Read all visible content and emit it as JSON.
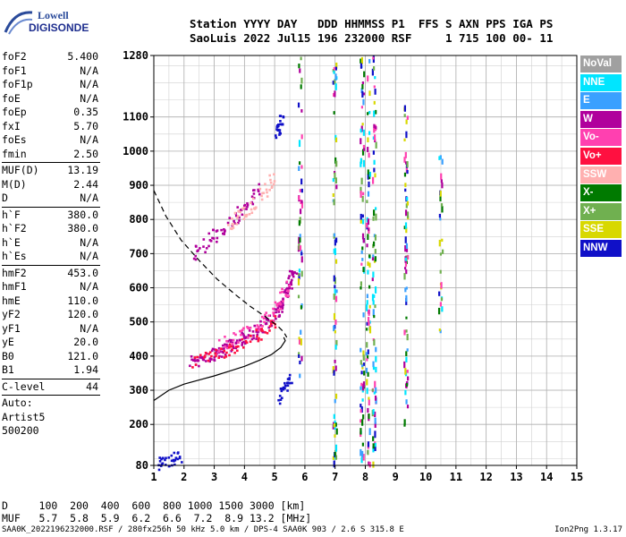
{
  "logo": {
    "line1": "Lowell",
    "line2": "DIGISONDE"
  },
  "header": {
    "line1": "Station YYYY DAY   DDD HHMMSS P1  FFS S AXN PPS IGA PS",
    "line2": "SaoLuis 2022 Jul15 196 232000 RSF     1 715 100 00- 11"
  },
  "params": [
    {
      "k": "foF2",
      "v": "5.400"
    },
    {
      "k": "foF1",
      "v": "N/A"
    },
    {
      "k": "foF1p",
      "v": "N/A"
    },
    {
      "k": "foE",
      "v": "N/A"
    },
    {
      "k": "foEp",
      "v": "0.35"
    },
    {
      "k": "fxI",
      "v": "5.70"
    },
    {
      "k": "foEs",
      "v": "N/A"
    },
    {
      "k": "fmin",
      "v": "2.50"
    },
    {
      "sep": true
    },
    {
      "k": "MUF(D)",
      "v": "13.19"
    },
    {
      "k": "M(D)",
      "v": "2.44"
    },
    {
      "k": "D",
      "v": "N/A"
    },
    {
      "sep": true
    },
    {
      "k": "h`F",
      "v": "380.0"
    },
    {
      "k": "h`F2",
      "v": "380.0"
    },
    {
      "k": "h`E",
      "v": "N/A"
    },
    {
      "k": "h`Es",
      "v": "N/A"
    },
    {
      "sep": true
    },
    {
      "k": "hmF2",
      "v": "453.0"
    },
    {
      "k": "hmF1",
      "v": "N/A"
    },
    {
      "k": "hmE",
      "v": "110.0"
    },
    {
      "k": "yF2",
      "v": "120.0"
    },
    {
      "k": "yF1",
      "v": "N/A"
    },
    {
      "k": "yE",
      "v": "20.0"
    },
    {
      "k": "B0",
      "v": "121.0"
    },
    {
      "k": "B1",
      "v": "1.94"
    },
    {
      "sep": true
    },
    {
      "k": "C-level",
      "v": "44"
    },
    {
      "sep": true
    },
    {
      "free": "Auto:"
    },
    {
      "free": "Artist5"
    },
    {
      "free": "500200"
    }
  ],
  "legend": [
    {
      "label": "NoVal",
      "color": "#a0a0a0"
    },
    {
      "label": "NNE",
      "color": "#00e5ff"
    },
    {
      "label": "E",
      "color": "#3aa0ff"
    },
    {
      "label": "W",
      "color": "#b0009c"
    },
    {
      "label": "Vo-",
      "color": "#ff40b0"
    },
    {
      "label": "Vo+",
      "color": "#ff1040"
    },
    {
      "label": "SSW",
      "color": "#ffb0b0"
    },
    {
      "label": "X-",
      "color": "#007a00"
    },
    {
      "label": "X+",
      "color": "#70b050"
    },
    {
      "label": "SSE",
      "color": "#d8d800"
    },
    {
      "label": "NNW",
      "color": "#1010c8"
    }
  ],
  "bottom": {
    "line1": "D     100  200  400  600  800 1000 1500 3000 [km]",
    "line2": "MUF   5.7  5.8  5.9  6.2  6.6  7.2  8.9 13.2 [MHz]"
  },
  "footer": "SAA0K_2022196232000.RSF / 280fx256h 50 kHz 5.0 km / DPS-4 SAA0K 903 / 2.6 S 315.8 E",
  "version": "Ion2Png 1.3.17",
  "chart_data": {
    "type": "scatter",
    "xlim": [
      1,
      15
    ],
    "ylim": [
      80,
      1280
    ],
    "x_ticks": [
      1,
      2,
      3,
      4,
      5,
      6,
      7,
      8,
      9,
      10,
      11,
      12,
      13,
      14,
      15
    ],
    "y_ticks": [
      80,
      200,
      300,
      400,
      500,
      600,
      700,
      800,
      900,
      1000,
      1100,
      1280
    ],
    "x_minor_step": 0.5,
    "y_minor_step": 50,
    "grid": true,
    "title": "",
    "xlabel": "",
    "ylabel": "",
    "profile_true_height": [
      [
        1.0,
        270
      ],
      [
        1.5,
        300
      ],
      [
        2.0,
        318
      ],
      [
        2.5,
        330
      ],
      [
        3.0,
        342
      ],
      [
        3.5,
        356
      ],
      [
        4.0,
        370
      ],
      [
        4.5,
        388
      ],
      [
        4.9,
        405
      ],
      [
        5.2,
        425
      ],
      [
        5.35,
        445
      ],
      [
        5.3,
        455
      ]
    ],
    "profile_extrapolated": [
      [
        1.0,
        885
      ],
      [
        1.4,
        810
      ],
      [
        1.9,
        740
      ],
      [
        2.5,
        680
      ],
      [
        3.1,
        625
      ],
      [
        3.7,
        580
      ],
      [
        4.2,
        545
      ],
      [
        4.7,
        515
      ],
      [
        5.1,
        488
      ],
      [
        5.3,
        470
      ],
      [
        5.4,
        455
      ]
    ],
    "traces": [
      {
        "color": "#b0009c",
        "points": [
          [
            2.2,
            383
          ],
          [
            2.4,
            388
          ],
          [
            2.6,
            393
          ],
          [
            2.8,
            400
          ],
          [
            3.0,
            407
          ],
          [
            3.2,
            415
          ],
          [
            3.4,
            423
          ],
          [
            3.6,
            432
          ],
          [
            3.8,
            441
          ],
          [
            4.0,
            451
          ],
          [
            4.2,
            461
          ],
          [
            4.4,
            472
          ],
          [
            4.6,
            484
          ],
          [
            4.8,
            498
          ],
          [
            5.0,
            515
          ],
          [
            5.1,
            530
          ],
          [
            5.2,
            548
          ],
          [
            5.3,
            568
          ],
          [
            5.4,
            590
          ],
          [
            5.5,
            612
          ],
          [
            5.6,
            636
          ],
          [
            5.65,
            660
          ]
        ]
      },
      {
        "color": "#ff40b0",
        "points": [
          [
            3.0,
            420
          ],
          [
            3.4,
            440
          ],
          [
            3.8,
            458
          ],
          [
            4.2,
            478
          ],
          [
            4.6,
            500
          ],
          [
            4.9,
            520
          ],
          [
            5.1,
            545
          ],
          [
            5.3,
            575
          ],
          [
            5.45,
            605
          ]
        ]
      },
      {
        "color": "#ff1040",
        "points": [
          [
            2.3,
            385
          ],
          [
            2.8,
            398
          ],
          [
            3.2,
            410
          ],
          [
            3.6,
            425
          ],
          [
            4.0,
            440
          ],
          [
            4.4,
            458
          ],
          [
            4.8,
            480
          ],
          [
            5.0,
            500
          ]
        ]
      },
      {
        "color": "#b0009c",
        "points": [
          [
            2.3,
            700
          ],
          [
            2.6,
            720
          ],
          [
            2.9,
            745
          ],
          [
            3.2,
            765
          ],
          [
            3.5,
            785
          ],
          [
            3.8,
            810
          ],
          [
            4.1,
            840
          ],
          [
            4.3,
            865
          ],
          [
            4.5,
            890
          ]
        ]
      },
      {
        "color": "#ffb0b0",
        "points": [
          [
            3.4,
            780
          ],
          [
            3.7,
            800
          ],
          [
            4.0,
            820
          ],
          [
            4.3,
            840
          ],
          [
            4.6,
            870
          ],
          [
            4.8,
            900
          ],
          [
            5.0,
            930
          ]
        ]
      },
      {
        "color": "#1010c8",
        "points": [
          [
            1.1,
            85
          ],
          [
            1.3,
            88
          ],
          [
            1.5,
            95
          ],
          [
            1.7,
            100
          ],
          [
            1.9,
            102
          ]
        ]
      },
      {
        "color": "#1010c8",
        "points": [
          [
            5.1,
            1040
          ],
          [
            5.15,
            1060
          ],
          [
            5.2,
            1080
          ],
          [
            5.25,
            1100
          ]
        ]
      },
      {
        "color": "#1010c8",
        "points": [
          [
            5.2,
            280
          ],
          [
            5.3,
            300
          ],
          [
            5.4,
            320
          ],
          [
            5.5,
            340
          ]
        ]
      }
    ],
    "noise_columns": [
      {
        "x": 5.85,
        "y1": 320,
        "y2": 1280
      },
      {
        "x": 7.0,
        "y1": 85,
        "y2": 1260
      },
      {
        "x": 7.9,
        "y1": 85,
        "y2": 1280
      },
      {
        "x": 8.1,
        "y1": 85,
        "y2": 1280
      },
      {
        "x": 8.3,
        "y1": 85,
        "y2": 1280
      },
      {
        "x": 9.35,
        "y1": 180,
        "y2": 1150
      },
      {
        "x": 10.5,
        "y1": 380,
        "y2": 1000
      }
    ]
  }
}
